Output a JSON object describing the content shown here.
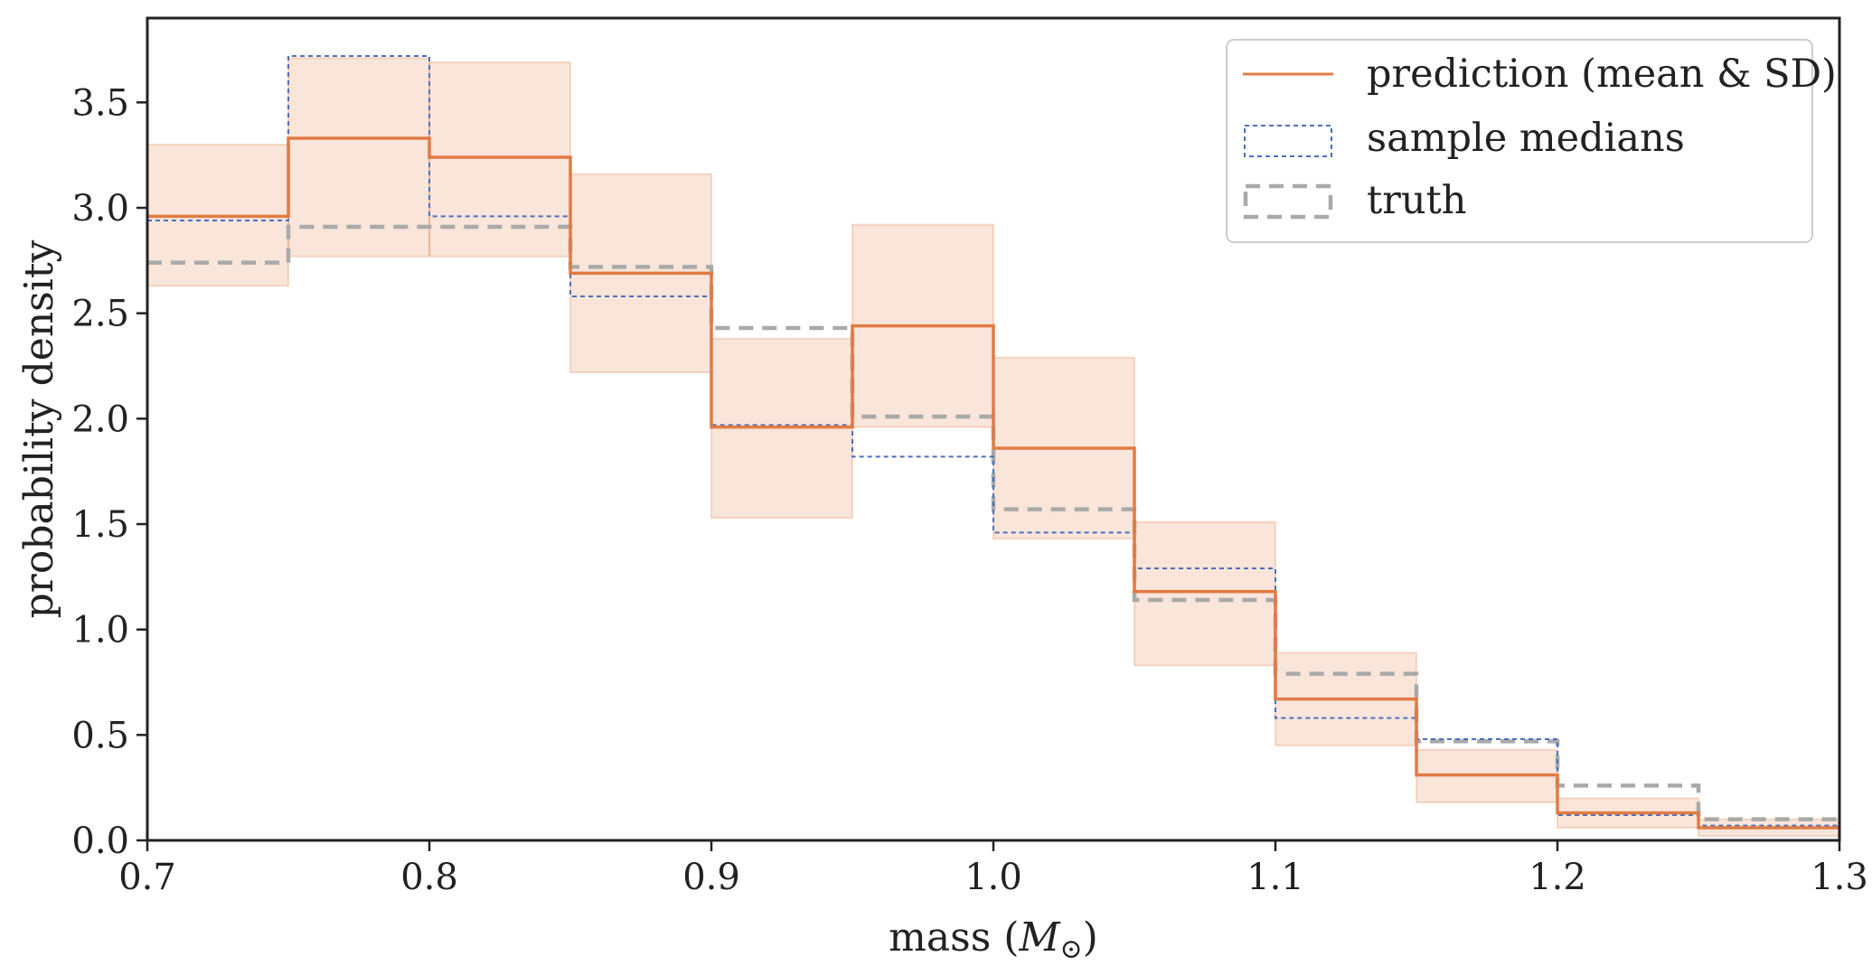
{
  "chart_data": {
    "type": "histogram-step",
    "title": "",
    "xlabel": "mass (M⊙)",
    "xlabel_prefix": "mass (",
    "xlabel_symbol": "M",
    "xlabel_subscript": "⊙",
    "xlabel_suffix": ")",
    "ylabel": "probability density",
    "xlim": [
      0.7,
      1.3
    ],
    "ylim": [
      0.0,
      3.9
    ],
    "xticks": [
      0.7,
      0.8,
      0.9,
      1.0,
      1.1,
      1.2,
      1.3
    ],
    "xtick_labels": [
      "0.7",
      "0.8",
      "0.9",
      "1.0",
      "1.1",
      "1.2",
      "1.3"
    ],
    "yticks": [
      0.0,
      0.5,
      1.0,
      1.5,
      2.0,
      2.5,
      3.0,
      3.5
    ],
    "ytick_labels": [
      "0.0",
      "0.5",
      "1.0",
      "1.5",
      "2.0",
      "2.5",
      "3.0",
      "3.5"
    ],
    "bin_edges": [
      0.7,
      0.75,
      0.8,
      0.85,
      0.9,
      0.95,
      1.0,
      1.05,
      1.1,
      1.15,
      1.2,
      1.25,
      1.3
    ],
    "series": [
      {
        "name": "prediction (mean & SD)",
        "style": "solid",
        "color": "#e07b44",
        "mean": [
          2.96,
          3.33,
          3.24,
          2.69,
          1.96,
          2.44,
          1.86,
          1.18,
          0.67,
          0.31,
          0.13,
          0.06
        ],
        "lower": [
          2.63,
          2.77,
          2.77,
          2.22,
          1.53,
          1.96,
          1.43,
          0.83,
          0.45,
          0.18,
          0.06,
          0.02
        ],
        "upper": [
          3.3,
          3.71,
          3.69,
          3.16,
          2.38,
          2.92,
          2.29,
          1.51,
          0.89,
          0.43,
          0.2,
          0.1
        ]
      },
      {
        "name": "sample medians",
        "style": "dotted",
        "color": "#4a6fc0",
        "values": [
          2.94,
          3.72,
          2.96,
          2.58,
          1.97,
          1.82,
          1.46,
          1.29,
          0.58,
          0.48,
          0.12,
          0.07
        ]
      },
      {
        "name": "truth",
        "style": "dashed",
        "color": "#a9a9a9",
        "values": [
          2.74,
          2.91,
          2.91,
          2.72,
          2.43,
          2.01,
          1.57,
          1.14,
          0.79,
          0.47,
          0.26,
          0.1
        ]
      }
    ],
    "legend": {
      "position": "top-right",
      "entries": [
        "prediction (mean & SD)",
        "sample medians",
        "truth"
      ]
    },
    "grid": false
  }
}
